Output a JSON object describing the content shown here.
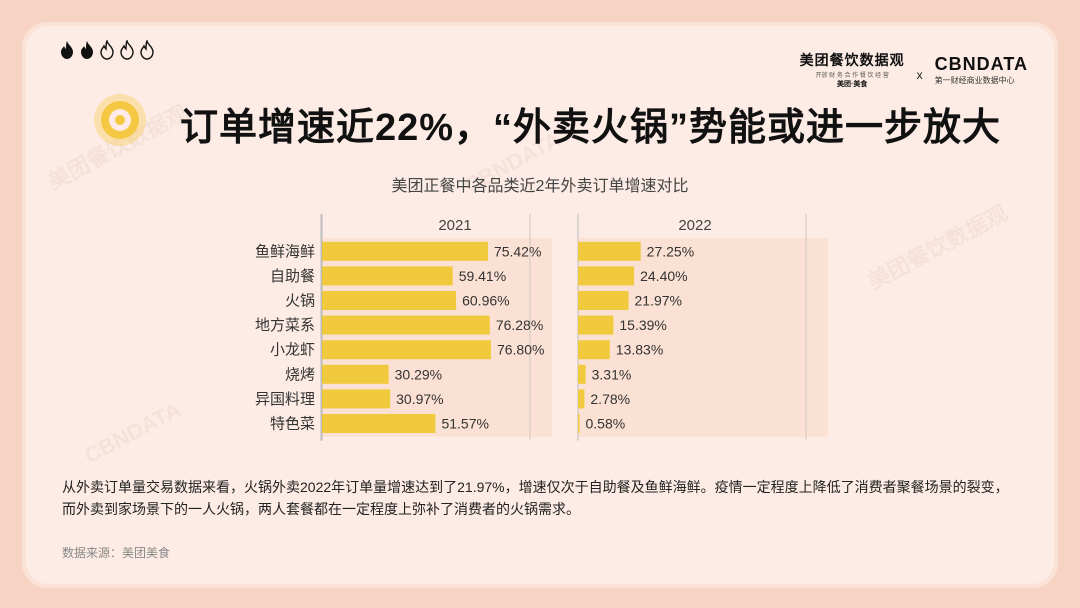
{
  "header": {
    "logo_left_title": "美团餐饮数据观",
    "logo_left_subtitle": "开放 财 务 合 作 餐 饮 经 营",
    "logo_left_brand": "美团·美食",
    "logo_separator": "x",
    "logo_right_title": "CBNDATA",
    "logo_right_subtitle": "第一财经商业数据中心",
    "flame_rating": {
      "filled": 2,
      "total": 5
    }
  },
  "title": "订单增速近22%，“外卖火锅”势能或进一步放大",
  "description": "从外卖订单量交易数据来看，火锅外卖2022年订单量增速达到了21.97%，增速仅次于自助餐及鱼鲜海鲜。疫情一定程度上降低了消费者聚餐场景的裂变，而外卖到家场景下的一人火锅，两人套餐都在一定程度上弥补了消费者的火锅需求。",
  "source": "数据来源：美团美食",
  "colors": {
    "bar": "#f0c93c",
    "panel": "#fbe1d3",
    "accent": "#f5c842"
  },
  "chart_data": {
    "type": "bar",
    "orientation": "horizontal",
    "title": "美团正餐中各品类近2年外卖订单增速对比",
    "categories": [
      "鱼鲜海鲜",
      "自助餐",
      "火锅",
      "地方菜系",
      "小龙虾",
      "烧烤",
      "异国料理",
      "特色菜"
    ],
    "panels": [
      {
        "name": "2021",
        "values": [
          75.42,
          59.41,
          60.96,
          76.28,
          76.8,
          30.29,
          30.97,
          51.57
        ],
        "labels": [
          "75.42%",
          "59.41%",
          "60.96%",
          "76.28%",
          "76.80%",
          "30.29%",
          "30.97%",
          "51.57%"
        ]
      },
      {
        "name": "2022",
        "values": [
          27.25,
          24.4,
          21.97,
          15.39,
          13.83,
          3.31,
          2.78,
          0.58
        ],
        "labels": [
          "27.25%",
          "24.40%",
          "21.97%",
          "15.39%",
          "13.83%",
          "3.31%",
          "2.78%",
          "0.58%"
        ]
      }
    ]
  }
}
